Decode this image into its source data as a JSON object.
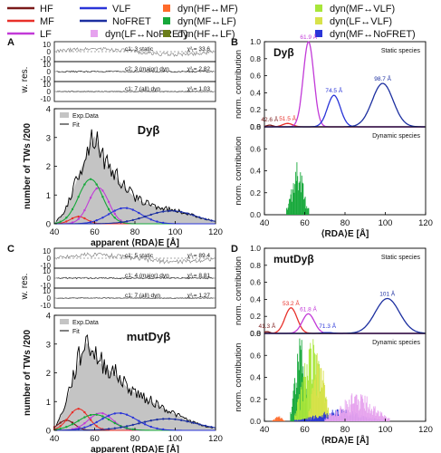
{
  "legend": {
    "rows": [
      [
        {
          "label": "HF",
          "color": "#7a1a1a",
          "kind": "line"
        },
        {
          "label": "VLF",
          "color": "#2a35d8",
          "kind": "line"
        },
        {
          "label": "dyn(HF↔MF)",
          "color": "#ff6a2a",
          "kind": "square"
        },
        {
          "label": "dyn(MF↔VLF)",
          "color": "#a8e63a",
          "kind": "square"
        }
      ],
      [
        {
          "label": "MF",
          "color": "#e8302a",
          "kind": "line"
        },
        {
          "label": "NoFRET",
          "color": "#1c2fa0",
          "kind": "line"
        },
        {
          "label": "dyn(MF↔LF)",
          "color": "#16a83a",
          "kind": "square"
        },
        {
          "label": "dyn(LF↔VLF)",
          "color": "#d8e24a",
          "kind": "square"
        }
      ],
      [
        {
          "label": "LF",
          "color": "#c23ad8",
          "kind": "line"
        },
        {
          "label": "dyn(LF↔NoFRET)",
          "color": "#e6a2ee",
          "kind": "square"
        },
        {
          "label": "dyn(HF↔LF)",
          "color": "#6a7d1a",
          "kind": "square"
        },
        {
          "label": "dyn(MF↔NoFRET)",
          "color": "#2a35d8",
          "kind": "square"
        }
      ]
    ]
  },
  "chart_data": [
    {
      "panel": "A",
      "type": "line",
      "title": "Dyβ",
      "xlabel": "apparent ⟨RDA⟩E [Å]",
      "ylabel": "number of TWs /200",
      "residuals_ylabel": "w. res.",
      "xlim": [
        40,
        120
      ],
      "xticks": [
        40,
        60,
        80,
        100,
        120
      ],
      "residual_yticks": [
        10,
        0,
        -10
      ],
      "residual_rows": [
        {
          "label": "c1: 3 static",
          "chi": "χ²ᵣ= 33.6",
          "amplitude": 5
        },
        {
          "label": "c2: 3 (major) dyn",
          "chi": "χ²ᵣ= 2.82",
          "amplitude": 2
        },
        {
          "label": "c1: 7 (all) dyn",
          "chi": "χ²ᵣ= 1.03",
          "amplitude": 1
        }
      ],
      "ylim": [
        0,
        4
      ],
      "yticks": [
        0,
        1,
        2,
        3,
        4
      ],
      "legend_entries": [
        "Exp.Data",
        "Fit"
      ],
      "x": [
        40,
        44,
        48,
        52,
        56,
        58,
        60,
        62,
        64,
        66,
        68,
        70,
        72,
        74,
        76,
        78,
        80,
        84,
        88,
        92,
        96,
        100,
        104,
        108,
        112,
        116,
        120
      ],
      "exp_data": [
        0.02,
        0.3,
        0.9,
        1.7,
        2.4,
        2.8,
        3.05,
        2.7,
        2.3,
        2.0,
        1.85,
        1.7,
        1.5,
        1.35,
        1.2,
        1.05,
        0.9,
        0.75,
        0.65,
        0.55,
        0.5,
        0.45,
        0.38,
        0.3,
        0.22,
        0.15,
        0.08
      ],
      "species": [
        {
          "name": "MF",
          "center": 52,
          "sigma": 4,
          "amplitude": 0.25
        },
        {
          "name": "LF",
          "center": 62,
          "sigma": 5,
          "amplitude": 1.25
        },
        {
          "name": "dyn(MF↔LF)",
          "center": 58,
          "sigma": 6,
          "amplitude": 1.55
        },
        {
          "name": "VLF",
          "center": 75,
          "sigma": 8,
          "amplitude": 0.55
        },
        {
          "name": "NoFRET",
          "center": 98,
          "sigma": 12,
          "amplitude": 0.45
        }
      ]
    },
    {
      "panel": "B",
      "type": "line",
      "title": "Dyβ",
      "xlabel": "⟨RDA⟩E [Å]",
      "ylabel": "norm. contribution",
      "xlim": [
        40,
        120
      ],
      "xticks": [
        40,
        60,
        80,
        100,
        120
      ],
      "static": {
        "label": "Static species",
        "ylim": [
          0,
          1.0
        ],
        "yticks": [
          0.0,
          0.2,
          0.4,
          0.6,
          0.8,
          1.0
        ],
        "peaks": [
          {
            "name": "HF",
            "center": 42.6,
            "height": 0.02,
            "sigma": 1.6,
            "label": "42.6 Å"
          },
          {
            "name": "MF",
            "center": 51.5,
            "height": 0.04,
            "sigma": 2.5,
            "label": "51.5 Å"
          },
          {
            "name": "LF",
            "center": 61.9,
            "height": 1.0,
            "sigma": 2.6,
            "label": "61.9 Å"
          },
          {
            "name": "VLF",
            "center": 74.5,
            "height": 0.37,
            "sigma": 3.2,
            "label": "74.5 Å"
          },
          {
            "name": "NoFRET",
            "center": 98.7,
            "height": 0.51,
            "sigma": 5.2,
            "label": "98.7 Å"
          }
        ]
      },
      "dynamic": {
        "label": "Dynamic species",
        "ylim": [
          0,
          0.8
        ],
        "yticks": [
          0.0,
          0.2,
          0.4,
          0.6,
          0.8
        ],
        "groups": [
          {
            "name": "dyn(MF↔LF)",
            "from": 51,
            "to": 62,
            "max": 0.45
          }
        ]
      }
    },
    {
      "panel": "C",
      "type": "line",
      "title": "mutDyβ",
      "xlabel": "apparent ⟨RDA⟩E [Å]",
      "ylabel": "number of TWs /200",
      "residuals_ylabel": "w. res.",
      "xlim": [
        40,
        120
      ],
      "xticks": [
        40,
        60,
        80,
        100,
        120
      ],
      "residual_yticks": [
        10,
        0,
        -10
      ],
      "residual_rows": [
        {
          "label": "c1: 5 static",
          "chi": "χ²ᵣ= 89.4",
          "amplitude": 6
        },
        {
          "label": "c1: 4 (major) dyn",
          "chi": "χ²ᵣ= 8.81",
          "amplitude": 2
        },
        {
          "label": "c1: 7 (all) dyn",
          "chi": "χ²ᵣ= 1.27",
          "amplitude": 1
        }
      ],
      "ylim": [
        0,
        4
      ],
      "yticks": [
        0,
        1,
        2,
        3,
        4
      ],
      "legend_entries": [
        "Exp.Data",
        "Fit"
      ],
      "x": [
        40,
        44,
        48,
        52,
        56,
        58,
        60,
        62,
        64,
        66,
        68,
        70,
        72,
        74,
        76,
        78,
        80,
        84,
        88,
        92,
        96,
        100,
        104,
        108,
        112,
        116,
        120
      ],
      "exp_data": [
        0.05,
        0.6,
        1.5,
        2.4,
        3.05,
        2.85,
        2.6,
        2.4,
        2.25,
        2.15,
        2.05,
        1.95,
        1.8,
        1.65,
        1.5,
        1.4,
        1.3,
        1.15,
        1.0,
        0.85,
        0.7,
        0.55,
        0.42,
        0.3,
        0.2,
        0.12,
        0.06
      ],
      "species": [
        {
          "name": "HF",
          "center": 46,
          "sigma": 4,
          "amplitude": 0.35
        },
        {
          "name": "MF",
          "center": 52,
          "sigma": 5,
          "amplitude": 0.75
        },
        {
          "name": "LF",
          "center": 63,
          "sigma": 6,
          "amplitude": 0.6
        },
        {
          "name": "dyn(MF↔LF)",
          "center": 60,
          "sigma": 8,
          "amplitude": 0.55
        },
        {
          "name": "VLF",
          "center": 72,
          "sigma": 9,
          "amplitude": 0.6
        },
        {
          "name": "NoFRET",
          "center": 96,
          "sigma": 14,
          "amplitude": 0.4
        }
      ]
    },
    {
      "panel": "D",
      "type": "line",
      "title": "mutDyβ",
      "xlabel": "⟨RDA⟩E [Å]",
      "ylabel": "norm. contribution",
      "xlim": [
        40,
        120
      ],
      "xticks": [
        40,
        60,
        80,
        100,
        120
      ],
      "static": {
        "label": "Static species",
        "ylim": [
          0,
          1.0
        ],
        "yticks": [
          0.0,
          0.2,
          0.4,
          0.6,
          0.8,
          1.0
        ],
        "peaks": [
          {
            "name": "HF",
            "center": 41.3,
            "height": 0.02,
            "sigma": 1.5,
            "label": "41.3 Å"
          },
          {
            "name": "MF",
            "center": 53.2,
            "height": 0.3,
            "sigma": 3.0,
            "label": "53.2 Å"
          },
          {
            "name": "LF",
            "center": 61.8,
            "height": 0.23,
            "sigma": 3.0,
            "label": "61.8 Å"
          },
          {
            "name": "VLF",
            "center": 71.3,
            "height": 0.01,
            "sigma": 2.5,
            "label": "71.3 Å"
          },
          {
            "name": "NoFRET",
            "center": 101,
            "height": 0.41,
            "sigma": 6.0,
            "label": "101 Å"
          }
        ]
      },
      "dynamic": {
        "label": "Dynamic species",
        "ylim": [
          0,
          0.8
        ],
        "yticks": [
          0.0,
          0.2,
          0.4,
          0.6,
          0.8
        ],
        "groups": [
          {
            "name": "dyn(HF↔MF)",
            "from": 44,
            "to": 50,
            "max": 0.05
          },
          {
            "name": "dyn(MF↔LF)",
            "from": 53,
            "to": 62,
            "max": 0.75
          },
          {
            "name": "dyn(MF↔VLF)",
            "from": 55,
            "to": 72,
            "max": 0.7
          },
          {
            "name": "dyn(LF↔VLF)",
            "from": 62,
            "to": 72,
            "max": 0.65
          },
          {
            "name": "dyn(MF↔NoFRET)",
            "from": 55,
            "to": 100,
            "max": 0.1
          },
          {
            "name": "dyn(LF↔NoFRET)",
            "from": 70,
            "to": 102,
            "max": 0.25
          }
        ]
      }
    }
  ]
}
